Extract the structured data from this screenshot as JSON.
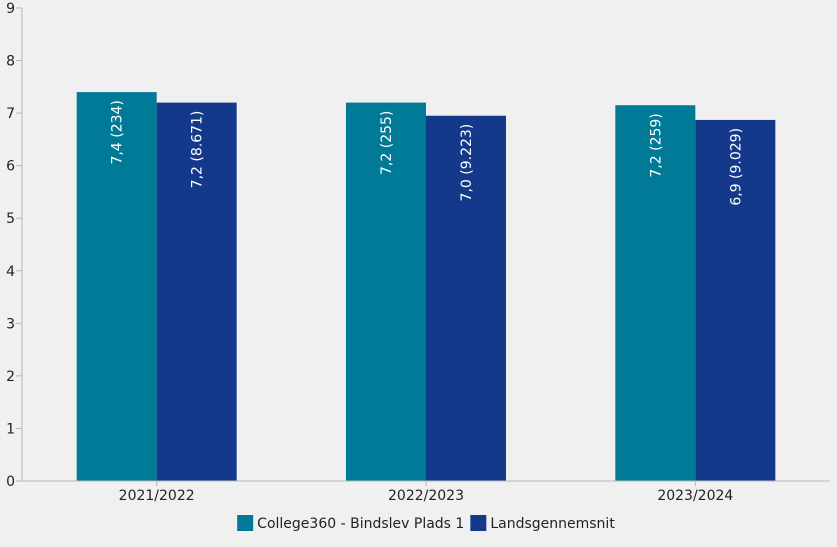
{
  "chart_data": {
    "type": "bar",
    "categories": [
      "2021/2022",
      "2022/2023",
      "2023/2024"
    ],
    "series": [
      {
        "name": "College360 - Bindslev Plads 1",
        "color": "#007a96",
        "values": [
          7.4,
          7.2,
          7.15
        ],
        "labels": [
          "7,4 (234)",
          "7,2 (255)",
          "7,2 (259)"
        ]
      },
      {
        "name": "Landsgennemsnit",
        "color": "#15398a",
        "values": [
          7.2,
          6.95,
          6.87
        ],
        "labels": [
          "7,2 (8.671)",
          "7,0 (9.223)",
          "6,9 (9.029)"
        ]
      }
    ],
    "ylim": [
      0,
      9
    ],
    "yticks": [
      "0",
      "1",
      "2",
      "3",
      "4",
      "5",
      "6",
      "7",
      "8",
      "9"
    ],
    "grid": false,
    "legend_position": "bottom"
  }
}
